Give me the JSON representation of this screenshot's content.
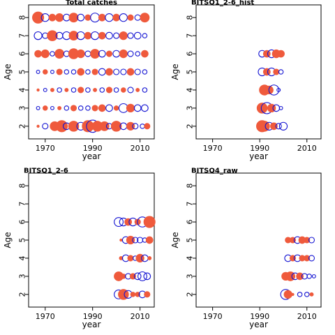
{
  "chart_data": [
    {
      "type": "scatter",
      "title": "Total catches",
      "xlabel": "year",
      "ylabel": "Age",
      "xlim": [
        1963,
        2016
      ],
      "ylim": [
        1.3,
        8.7
      ],
      "xticks": [
        1970,
        1990,
        2010
      ],
      "yticks": [
        2,
        3,
        4,
        5,
        6,
        7,
        8
      ],
      "colors": {
        "positive": "#ef5a3c",
        "negative": "#1414d2"
      },
      "series": [
        {
          "x": [
            1967,
            1970,
            1974,
            1977,
            1979,
            1982,
            1985,
            1988,
            1990,
            1992,
            1995,
            1997,
            2000,
            2003,
            2006,
            2008,
            2011,
            2013
          ],
          "y": [
            2,
            2,
            2,
            2,
            2,
            2,
            2,
            2,
            2,
            2,
            2,
            2,
            2,
            2,
            2,
            2,
            2,
            2
          ],
          "sign": [
            1,
            -1,
            1,
            1,
            -1,
            1,
            -1,
            1,
            -1,
            1,
            1,
            -1,
            1,
            -1,
            1,
            -1,
            -1,
            1
          ],
          "size": [
            0.2,
            0.5,
            0.8,
            1.0,
            0.6,
            0.9,
            0.7,
            1.0,
            1.1,
            0.9,
            0.8,
            0.5,
            0.9,
            0.6,
            0.7,
            0.5,
            0.4,
            0.5
          ]
        },
        {
          "x": [
            1967,
            1970,
            1973,
            1976,
            1979,
            1982,
            1985,
            1988,
            1991,
            1994,
            1997,
            2000,
            2003,
            2006,
            2009,
            2012
          ],
          "y": [
            3,
            3,
            3,
            3,
            3,
            3,
            3,
            3,
            3,
            3,
            3,
            3,
            3,
            3,
            3,
            3
          ],
          "sign": [
            -1,
            1,
            -1,
            1,
            -1,
            1,
            -1,
            -1,
            1,
            1,
            -1,
            1,
            -1,
            1,
            -1,
            -1
          ],
          "size": [
            0.3,
            0.4,
            0.3,
            0.3,
            0.4,
            0.5,
            0.4,
            0.4,
            0.5,
            0.6,
            0.6,
            0.4,
            0.8,
            0.7,
            0.6,
            0.6
          ]
        },
        {
          "x": [
            1967,
            1970,
            1973,
            1976,
            1979,
            1982,
            1985,
            1988,
            1991,
            1994,
            1997,
            2000,
            2003,
            2006,
            2009,
            2012
          ],
          "y": [
            4,
            4,
            4,
            4,
            4,
            4,
            4,
            4,
            4,
            4,
            4,
            4,
            4,
            4,
            4,
            4
          ],
          "sign": [
            1,
            -1,
            1,
            -1,
            1,
            -1,
            1,
            -1,
            1,
            -1,
            1,
            -1,
            1,
            -1,
            1,
            -1
          ],
          "size": [
            0.2,
            0.3,
            0.3,
            0.4,
            0.3,
            0.4,
            0.5,
            0.4,
            0.3,
            0.4,
            0.5,
            0.4,
            0.4,
            0.5,
            0.3,
            0.4
          ]
        },
        {
          "x": [
            1967,
            1970,
            1973,
            1976,
            1979,
            1982,
            1985,
            1988,
            1991,
            1994,
            1997,
            2000,
            2003,
            2006,
            2009,
            2012
          ],
          "y": [
            5,
            5,
            5,
            5,
            5,
            5,
            5,
            5,
            5,
            5,
            5,
            5,
            5,
            5,
            5,
            5
          ],
          "sign": [
            -1,
            1,
            -1,
            1,
            -1,
            -1,
            1,
            -1,
            1,
            -1,
            1,
            -1,
            -1,
            1,
            -1,
            -1
          ],
          "size": [
            0.3,
            0.4,
            0.3,
            0.5,
            0.4,
            0.4,
            0.6,
            0.4,
            0.5,
            0.6,
            0.6,
            0.5,
            0.5,
            0.6,
            0.5,
            0.4
          ]
        },
        {
          "x": [
            1967,
            1970,
            1973,
            1976,
            1979,
            1982,
            1985,
            1988,
            1991,
            1994,
            1997,
            2000,
            2003,
            2006,
            2009,
            2012
          ],
          "y": [
            6,
            6,
            6,
            6,
            6,
            6,
            6,
            6,
            6,
            6,
            6,
            6,
            6,
            6,
            6,
            6
          ],
          "sign": [
            1,
            1,
            -1,
            1,
            -1,
            1,
            1,
            -1,
            1,
            -1,
            1,
            -1,
            1,
            -1,
            -1,
            1
          ],
          "size": [
            0.6,
            0.7,
            0.4,
            0.8,
            0.5,
            0.9,
            0.7,
            0.5,
            0.8,
            0.6,
            0.5,
            0.6,
            0.7,
            0.5,
            0.4,
            0.6
          ]
        },
        {
          "x": [
            1967,
            1970,
            1973,
            1976,
            1979,
            1982,
            1985,
            1988,
            1991,
            1994,
            1997,
            2000,
            2003,
            2006,
            2009,
            2012
          ],
          "y": [
            7,
            7,
            7,
            7,
            7,
            7,
            7,
            7,
            7,
            7,
            7,
            7,
            7,
            7,
            7,
            7
          ],
          "sign": [
            -1,
            -1,
            1,
            -1,
            -1,
            1,
            -1,
            1,
            -1,
            1,
            -1,
            -1,
            1,
            -1,
            -1,
            -1
          ],
          "size": [
            0.7,
            0.5,
            0.9,
            0.6,
            0.7,
            0.8,
            0.7,
            0.6,
            0.7,
            0.6,
            0.6,
            0.5,
            0.7,
            0.5,
            0.6,
            0.4
          ]
        },
        {
          "x": [
            1967,
            1970,
            1973,
            1976,
            1979,
            1982,
            1985,
            1988,
            1991,
            1994,
            1997,
            2000,
            2003,
            2006,
            2009,
            2012
          ],
          "y": [
            8,
            8,
            8,
            8,
            8,
            8,
            8,
            8,
            8,
            8,
            8,
            8,
            8,
            8,
            8,
            8
          ],
          "sign": [
            1,
            -1,
            1,
            1,
            -1,
            1,
            -1,
            1,
            -1,
            1,
            -1,
            1,
            -1,
            1,
            -1,
            1
          ],
          "size": [
            1.0,
            0.7,
            0.6,
            0.7,
            0.6,
            0.8,
            0.6,
            0.5,
            0.8,
            0.6,
            0.7,
            0.6,
            0.7,
            0.5,
            0.5,
            0.8
          ]
        }
      ]
    },
    {
      "type": "scatter",
      "title": "BITSQ1_2-6_hist",
      "xlabel": "year",
      "ylabel": "Age",
      "xlim": [
        1963,
        2016
      ],
      "ylim": [
        1.3,
        8.7
      ],
      "xticks": [
        1970,
        1990,
        2010
      ],
      "yticks": [
        2,
        3,
        4,
        5,
        6,
        7,
        8
      ],
      "colors": {
        "positive": "#ef5a3c",
        "negative": "#1414d2"
      },
      "series": [
        {
          "x": [
            1991,
            1992,
            1994,
            1996,
            1998,
            2000
          ],
          "y": [
            2,
            2,
            2,
            2,
            2,
            2
          ],
          "sign": [
            1,
            1,
            -1,
            1,
            -1,
            -1
          ],
          "size": [
            1.0,
            0.9,
            0.7,
            0.6,
            0.5,
            0.7
          ]
        },
        {
          "x": [
            1991,
            1993,
            1995,
            1997,
            1999
          ],
          "y": [
            3,
            3,
            3,
            3,
            3
          ],
          "sign": [
            1,
            -1,
            1,
            -1,
            -1
          ],
          "size": [
            0.9,
            1.0,
            0.7,
            0.6,
            0.3
          ]
        },
        {
          "x": [
            1992,
            1994,
            1996,
            1998
          ],
          "y": [
            4,
            4,
            4,
            4
          ],
          "sign": [
            1,
            1,
            -1,
            -1
          ],
          "size": [
            0.9,
            0.7,
            0.9,
            0.3
          ]
        },
        {
          "x": [
            1991,
            1993,
            1995,
            1997,
            1999
          ],
          "y": [
            5,
            5,
            5,
            5,
            5
          ],
          "sign": [
            -1,
            1,
            -1,
            1,
            -1
          ],
          "size": [
            0.7,
            0.6,
            0.7,
            0.5,
            0.4
          ]
        },
        {
          "x": [
            1991,
            1993,
            1995,
            1997,
            1999
          ],
          "y": [
            6,
            6,
            6,
            6,
            6
          ],
          "sign": [
            -1,
            1,
            -1,
            1,
            1
          ],
          "size": [
            0.6,
            0.6,
            0.7,
            0.7,
            0.6
          ]
        }
      ]
    },
    {
      "type": "scatter",
      "title": "BITSQ1_2-6",
      "xlabel": "year",
      "ylabel": "Age",
      "xlim": [
        1963,
        2016
      ],
      "ylim": [
        1.3,
        8.7
      ],
      "xticks": [
        1970,
        1990,
        2010
      ],
      "yticks": [
        2,
        3,
        4,
        5,
        6,
        7,
        8
      ],
      "colors": {
        "positive": "#ef5a3c",
        "negative": "#1414d2"
      },
      "series": [
        {
          "x": [
            2001,
            2003,
            2005,
            2007,
            2009,
            2011,
            2013
          ],
          "y": [
            2,
            2,
            2,
            2,
            2,
            2,
            2
          ],
          "sign": [
            -1,
            1,
            -1,
            1,
            1,
            -1,
            1
          ],
          "size": [
            0.8,
            0.9,
            0.7,
            0.4,
            0.4,
            0.6,
            0.5
          ]
        },
        {
          "x": [
            2001,
            2003,
            2005,
            2007,
            2009,
            2011,
            2013
          ],
          "y": [
            3,
            3,
            3,
            3,
            3,
            3,
            3
          ],
          "sign": [
            1,
            1,
            -1,
            1,
            -1,
            -1,
            -1
          ],
          "size": [
            0.8,
            0.4,
            0.5,
            0.5,
            0.6,
            0.8,
            0.6
          ]
        },
        {
          "x": [
            2002,
            2004,
            2006,
            2008,
            2010,
            2012,
            2014
          ],
          "y": [
            4,
            4,
            4,
            4,
            4,
            4,
            4
          ],
          "sign": [
            1,
            -1,
            1,
            -1,
            1,
            -1,
            1
          ],
          "size": [
            0.3,
            0.6,
            0.5,
            0.4,
            0.7,
            0.6,
            0.3
          ]
        },
        {
          "x": [
            2002,
            2004,
            2006,
            2008,
            2010,
            2012,
            2014
          ],
          "y": [
            5,
            5,
            5,
            5,
            5,
            5,
            5
          ],
          "sign": [
            1,
            -1,
            1,
            -1,
            -1,
            -1,
            1
          ],
          "size": [
            0.2,
            0.6,
            0.7,
            0.5,
            0.5,
            0.4,
            0.6
          ]
        },
        {
          "x": [
            2001,
            2003,
            2005,
            2007,
            2009,
            2011,
            2014
          ],
          "y": [
            6,
            6,
            6,
            6,
            6,
            6,
            6
          ],
          "sign": [
            -1,
            -1,
            1,
            -1,
            1,
            -1,
            1
          ],
          "size": [
            0.8,
            0.7,
            0.6,
            0.7,
            0.5,
            0.9,
            1.0
          ]
        }
      ]
    },
    {
      "type": "scatter",
      "title": "BITSQ4_raw",
      "xlabel": "year",
      "ylabel": "Age",
      "xlim": [
        1963,
        2016
      ],
      "ylim": [
        1.3,
        8.7
      ],
      "xticks": [
        1970,
        1990,
        2010
      ],
      "yticks": [
        2,
        3,
        4,
        5,
        6,
        7,
        8
      ],
      "colors": {
        "positive": "#ef5a3c",
        "negative": "#1414d2"
      },
      "series": [
        {
          "x": [
            2001,
            2002,
            2004,
            2007,
            2010,
            2012
          ],
          "y": [
            2,
            2,
            2,
            2,
            2,
            2
          ],
          "sign": [
            -1,
            1,
            1,
            -1,
            -1,
            1
          ],
          "size": [
            0.9,
            0.7,
            0.2,
            0.4,
            0.4,
            0.3
          ]
        },
        {
          "x": [
            2001,
            2003,
            2005,
            2007,
            2009,
            2011,
            2013
          ],
          "y": [
            3,
            3,
            3,
            3,
            3,
            3,
            3
          ],
          "sign": [
            1,
            1,
            -1,
            1,
            -1,
            -1,
            -1
          ],
          "size": [
            0.7,
            0.8,
            0.6,
            0.6,
            0.5,
            0.4,
            0.3
          ]
        },
        {
          "x": [
            2002,
            2004,
            2006,
            2008,
            2010,
            2012
          ],
          "y": [
            4,
            4,
            4,
            4,
            4,
            4
          ],
          "sign": [
            -1,
            1,
            -1,
            1,
            1,
            -1
          ],
          "size": [
            0.6,
            0.5,
            0.6,
            0.5,
            0.5,
            0.5
          ]
        },
        {
          "x": [
            2002,
            2004,
            2006,
            2008,
            2010,
            2012
          ],
          "y": [
            5,
            5,
            5,
            5,
            5,
            5
          ],
          "sign": [
            1,
            1,
            -1,
            1,
            1,
            -1
          ],
          "size": [
            0.5,
            0.5,
            0.6,
            0.6,
            0.5,
            0.5
          ]
        }
      ]
    }
  ]
}
